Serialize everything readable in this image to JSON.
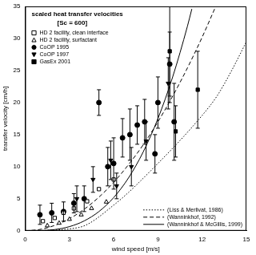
{
  "chart_data": {
    "type": "scatter",
    "title": "scaled heat transfer velocities",
    "subtitle": "[Sc = 600]",
    "x_label": "wind speed [m/s]",
    "y_label": "transfer velocity [cm/h]",
    "xlim": [
      0,
      15
    ],
    "xticks": [
      0,
      3,
      6,
      9,
      12,
      15
    ],
    "ylim": [
      0,
      35
    ],
    "yticks": [
      0,
      5,
      10,
      15,
      20,
      25,
      30,
      35
    ],
    "grid": false,
    "legend": "upper left",
    "series": [
      {
        "name": "HD 2 facility, clean interface",
        "type": "scatter",
        "marker": "square_open",
        "color": "#000000",
        "x": [
          1.2,
          2.0,
          2.6,
          3.3,
          4.2,
          5.0,
          6.0
        ],
        "values": [
          1.5,
          2.0,
          2.8,
          3.5,
          4.6,
          6.5,
          8.0
        ]
      },
      {
        "name": "HD 2 facility, surfactant",
        "type": "scatter",
        "marker": "triangle_open",
        "color": "#000000",
        "x": [
          1.5,
          2.3,
          3.0,
          3.8,
          4.5,
          5.5
        ],
        "values": [
          0.8,
          1.2,
          1.8,
          2.5,
          3.5,
          4.5
        ]
      },
      {
        "name": "CoOP 1995",
        "type": "scatter",
        "marker": "circle",
        "color": "#000000",
        "x": [
          1.0,
          1.8,
          2.6,
          3.3,
          4.0,
          5.0,
          5.6,
          6.0,
          6.6,
          7.1,
          7.6,
          8.1,
          8.8,
          9.0,
          9.8,
          10.1
        ],
        "values": [
          2.5,
          2.8,
          3.0,
          4.3,
          5.0,
          20.0,
          10.0,
          10.5,
          14.5,
          15.0,
          16.5,
          17.0,
          12.0,
          20.0,
          26.0,
          17.0
        ],
        "errors": [
          1.5,
          1.5,
          1.5,
          1.5,
          2.0,
          2.0,
          3.0,
          4.0,
          3.0,
          4.0,
          3.0,
          3.5,
          3.0,
          4.0,
          5.0,
          6.0
        ]
      },
      {
        "name": "CoOP 1997",
        "type": "scatter",
        "marker": "triangle_down",
        "color": "#000000",
        "x": [
          3.5,
          4.6,
          5.8,
          6.2,
          7.2,
          8.2,
          9.7
        ],
        "values": [
          5,
          8,
          11,
          7,
          10,
          14,
          23
        ],
        "errors": [
          2,
          2,
          3,
          2,
          3,
          3,
          4
        ]
      },
      {
        "name": "GasEx 2001",
        "type": "scatter",
        "marker": "square",
        "color": "#000000",
        "x": [
          9.8,
          10.2,
          11.7
        ],
        "values": [
          28,
          15.5,
          22
        ],
        "errors": [
          8,
          4,
          6
        ]
      },
      {
        "name": "(Liss & Merlivat, 1986)",
        "type": "line",
        "line_style": "dotted",
        "color": "#000000",
        "x": [
          0,
          3.6,
          6,
          9,
          12,
          13,
          14,
          15
        ],
        "values": [
          0,
          0.5,
          4,
          10.5,
          18,
          21,
          25,
          29.5
        ]
      },
      {
        "name": "(Wanninkhof, 1992)",
        "type": "line",
        "line_style": "dashed",
        "color": "#000000",
        "x": [
          0,
          1,
          2,
          3,
          4,
          5,
          6,
          7,
          8,
          9,
          10,
          11,
          12,
          12.9
        ],
        "values": [
          0,
          0.21,
          0.84,
          1.89,
          3.36,
          5.25,
          7.56,
          10.3,
          13.4,
          17,
          21,
          25.4,
          30.2,
          34.9
        ]
      },
      {
        "name": "(Wanninkhof & McGillis, 1999)",
        "type": "line",
        "line_style": "solid",
        "color": "#000000",
        "x": [
          0,
          1,
          2,
          3,
          4,
          5,
          6,
          7,
          8,
          9,
          10,
          11,
          11.3
        ],
        "values": [
          0,
          0.02,
          0.19,
          0.65,
          1.54,
          3,
          5.18,
          8.23,
          12.29,
          17.5,
          24,
          31.9,
          34.6
        ]
      }
    ]
  }
}
